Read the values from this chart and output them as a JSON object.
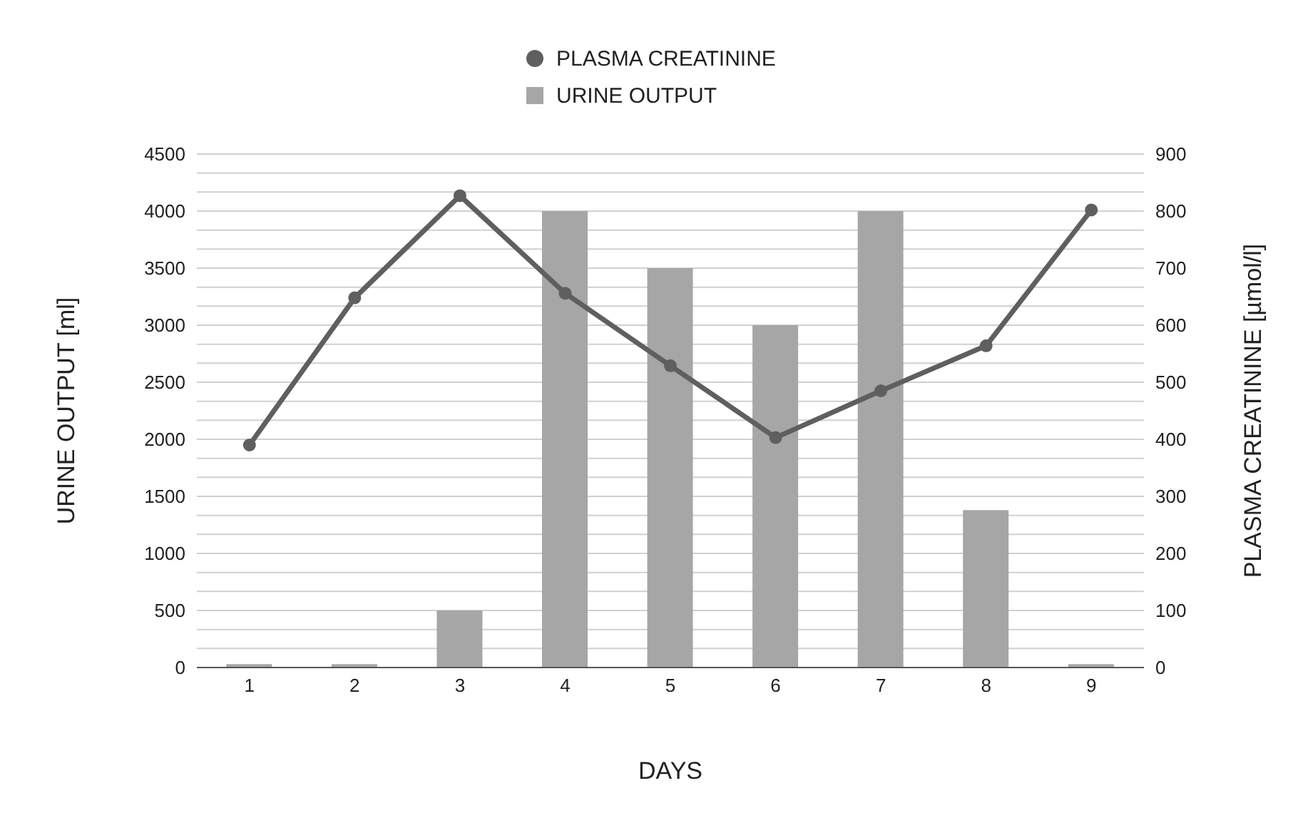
{
  "chart_data": {
    "type": "bar",
    "categories": [
      "1",
      "2",
      "3",
      "4",
      "5",
      "6",
      "7",
      "8",
      "9"
    ],
    "xlabel": "DAYS",
    "ylabel": "URINE OUTPUT [ml]",
    "y2label": "PLASMA CREATININE [µmol/l]",
    "series": [
      {
        "name": "PLASMA CREATININE",
        "type": "line",
        "axis": "y2",
        "color": "#5f5f5f",
        "values": [
          390,
          648,
          827,
          656,
          529,
          403,
          485,
          564,
          802
        ]
      },
      {
        "name": "URINE OUTPUT",
        "color": "#a6a6a6",
        "values": [
          30,
          30,
          500,
          4000,
          3500,
          3000,
          4000,
          1380,
          30
        ]
      }
    ],
    "ylim": [
      0,
      4500
    ],
    "yticks": [
      0,
      500,
      1000,
      1500,
      2000,
      2500,
      3000,
      3500,
      4000,
      4500
    ],
    "y2lim": [
      0,
      900
    ],
    "y2ticks": [
      0,
      100,
      200,
      300,
      400,
      500,
      600,
      700,
      800,
      900
    ],
    "grid": "y",
    "legend": "top",
    "marker": "circle"
  }
}
